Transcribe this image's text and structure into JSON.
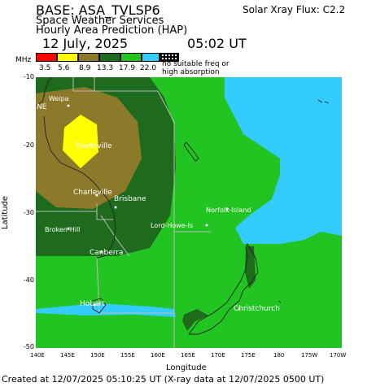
{
  "header": {
    "base": "BASE: ASA_TVLSP6",
    "org": "Space Weather Services",
    "product": "Hourly Area Prediction (HAP)",
    "date": "12 July, 2025",
    "time": "05:02 UT",
    "xray_flux": "Solar Xray Flux: C2.2"
  },
  "legend": {
    "unit": "MHz",
    "colors": [
      "#ff0000",
      "#ffff00",
      "#8b7a2a",
      "#1e6b1e",
      "#22c422",
      "#33ccff",
      "#000000"
    ],
    "values": [
      "3.5",
      "5.6",
      "8.9",
      "13.3",
      "17.9",
      "22.0"
    ],
    "note_line1": "no suitable freq or",
    "note_line2": "high absorption"
  },
  "axes": {
    "ylabel": "Latitude",
    "xlabel": "Longitude",
    "yticks": [
      "-10",
      "-20",
      "-30",
      "-40",
      "-50"
    ],
    "xticks": [
      "140E",
      "145E",
      "150E",
      "155E",
      "160E",
      "165E",
      "170E",
      "175E",
      "180",
      "175W",
      "170W"
    ]
  },
  "places": {
    "weipa": "Weipa",
    "ne": "NE",
    "townsville": "Townsville",
    "charleville": "Charleville",
    "brisbane": "Brisbane",
    "brokenhill": "Broken-Hill",
    "canberra": "Canberra",
    "hobart": "Hobart",
    "lordhowe": "Lord-Howe-Is",
    "norfolk": "Norfolk-Island",
    "christchurch": "Christchurch"
  },
  "footer": {
    "created": "Created at 12/07/2025 05:10:25 UT (X-ray data at 12/07/2025 0500 UT)"
  }
}
